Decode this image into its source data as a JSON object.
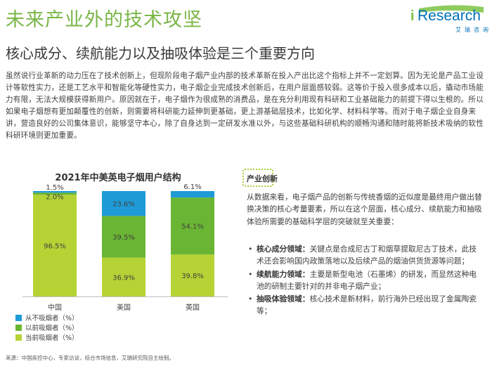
{
  "header": {
    "title": "未来产业外的技术攻坚",
    "subtitle": "核心成分、续航能力以及抽吸体验是三个重要方向"
  },
  "logo": {
    "brand": "Research",
    "brand_prefix": "i",
    "chinese": "艾瑞咨询"
  },
  "intro_text": "虽然说行业革新的动力压在了技术创新上，但现阶段电子烟产业内部的技术革新在投入产出比这个指标上并不一定划算。因为无论是产品工业设计等软性实力，还是工艺水平和智能化等硬性实力，电子烟企业完成技术创新后，在用户层面感较弱。这等价于投入很多成本以后，撬动市场能力有限，无法大规模获得新用户。原因就在于，电子烟作为很成熟的消费品，是在充分利用现有科研和工业基础能力的前提下得以生根的。所以如果电子烟想有更加颠覆性的创新，则需要将科研能力延伸到更基础，更上游基础层技术，比如化学、材料科学等。而对于电子烟企业自身来讲，营造良好的公司集体意识，能够坚守本心，除了自身达到一定研发水准以外，与这些基础科研机构的顺畅沟通和随时能将新技术吸纳的软性科研环境则更加重要。",
  "section": {
    "heading": "产业创新",
    "body": "从数据来看，电子烟产品的创新与传统香烟的近似度是最终用户做出替换决策的核心考量要素，所以在这个层面，核心成分、续航能力和抽吸体验所需要的基础科学层的突破就至关重要：",
    "bullets": [
      {
        "label": "核心成分领域：",
        "text": "关键点是合成尼古丁和烟草提取尼古丁技术，此技术还会影响国内政策落地以及后续产品的烟油供货货源等问题；"
      },
      {
        "label": "续航能力领域：",
        "text": "主要是新型电池（石墨烯）的研发，而显然这种电池的研制主要针对的并非电子烟产业；"
      },
      {
        "label": "抽吸体验领域：",
        "text": "核心技术是新材料，前行海外已经出现了金属陶瓷等；"
      }
    ]
  },
  "source": "来源：中国疾控中心，专家访谈，综合市场信息，艾瑞研究院自主绘制。",
  "colors": {
    "never": "#1e9bd7",
    "former": "#6ab533",
    "current": "#b5d334",
    "title_green": "#7ab648"
  },
  "chart_data": {
    "type": "bar",
    "stacked": true,
    "title": "2021年中美英电子烟用户结构",
    "categories": [
      "中国",
      "美国",
      "英国"
    ],
    "series": [
      {
        "name": "当前吸烟者（%）",
        "values": [
          96.5,
          36.9,
          39.8
        ],
        "color": "#b5d334"
      },
      {
        "name": "以前吸烟者（%）",
        "values": [
          2.0,
          39.5,
          54.1
        ],
        "color": "#6ab533"
      },
      {
        "name": "从不吸烟者（%）",
        "values": [
          1.5,
          23.6,
          6.1
        ],
        "color": "#1e9bd7"
      }
    ],
    "ylim": [
      0,
      100
    ],
    "legend_order": [
      "从不吸烟者（%）",
      "以前吸烟者（%）",
      "当前吸烟者（%）"
    ],
    "legend_position": "bottom"
  }
}
